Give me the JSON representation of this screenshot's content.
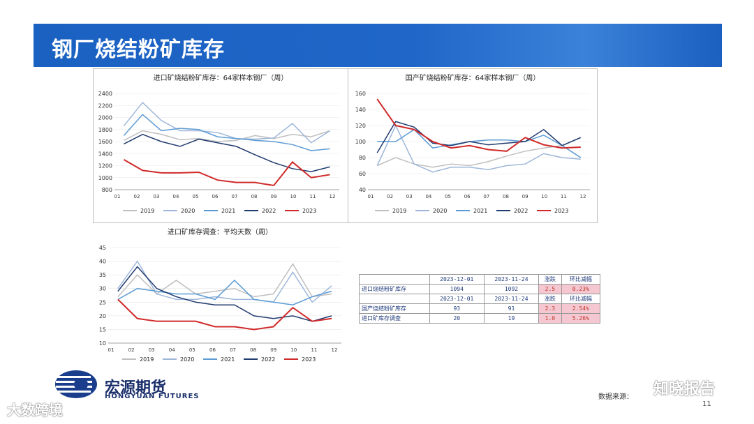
{
  "slide": {
    "title": "钢厂烧结粉矿库存",
    "page": "11"
  },
  "brand": {
    "name": "宏源期货",
    "name_en": "HONGYUAN FUTURES"
  },
  "source": "数据来源：",
  "watermark_left": "大数跨境",
  "watermark_right": "知晓报告",
  "legend_years": [
    "2019",
    "2020",
    "2021",
    "2022",
    "2023"
  ],
  "chart_data": [
    {
      "type": "line",
      "title": "进口矿烧结粉矿库存：64家样本钢厂（周）",
      "yticks": [
        "2400",
        "2200",
        "2000",
        "1800",
        "1600",
        "1400",
        "1200",
        "1000",
        "800"
      ],
      "ylim": [
        800,
        2400
      ],
      "xticks": [
        "01",
        "02",
        "03",
        "04",
        "05",
        "06",
        "07",
        "08",
        "09",
        "10",
        "11",
        "12"
      ],
      "series": [
        {
          "name": "2019",
          "color": "#bfbfbf",
          "values": [
            1620,
            1780,
            1720,
            1630,
            1650,
            1600,
            1620,
            1700,
            1650,
            1720,
            1680,
            1780
          ]
        },
        {
          "name": "2020",
          "color": "#9db6d9",
          "values": [
            1860,
            2250,
            1950,
            1780,
            1780,
            1750,
            1650,
            1640,
            1660,
            1900,
            1580,
            1780
          ]
        },
        {
          "name": "2021",
          "color": "#5b9bd5",
          "values": [
            1700,
            2050,
            1780,
            1820,
            1800,
            1680,
            1650,
            1620,
            1600,
            1550,
            1450,
            1480
          ]
        },
        {
          "name": "2022",
          "color": "#1f3a6e",
          "values": [
            1560,
            1720,
            1600,
            1520,
            1640,
            1580,
            1520,
            1380,
            1250,
            1150,
            1100,
            1180
          ]
        },
        {
          "name": "2023",
          "color": "#d02a2a",
          "values": [
            1300,
            1120,
            1080,
            1080,
            1090,
            960,
            920,
            920,
            870,
            1260,
            1000,
            1050
          ]
        }
      ]
    },
    {
      "type": "line",
      "title": "国产矿烧结粉矿库存：64家样本钢厂（周）",
      "yticks": [
        "160",
        "140",
        "120",
        "100",
        "80",
        "60",
        "40"
      ],
      "ylim": [
        40,
        160
      ],
      "xticks": [
        "01",
        "02",
        "03",
        "04",
        "05",
        "06",
        "07",
        "08",
        "09",
        "10",
        "11",
        "12"
      ],
      "series": [
        {
          "name": "2019",
          "color": "#bfbfbf",
          "values": [
            70,
            80,
            72,
            68,
            72,
            70,
            75,
            82,
            88,
            92,
            95,
            80
          ]
        },
        {
          "name": "2020",
          "color": "#9db6d9",
          "values": [
            70,
            120,
            72,
            62,
            68,
            68,
            65,
            70,
            72,
            85,
            80,
            78
          ]
        },
        {
          "name": "2021",
          "color": "#5b9bd5",
          "values": [
            100,
            100,
            115,
            92,
            96,
            100,
            102,
            102,
            100,
            108,
            95,
            80
          ]
        },
        {
          "name": "2022",
          "color": "#1f3a6e",
          "values": [
            86,
            125,
            118,
            98,
            95,
            100,
            96,
            98,
            100,
            115,
            95,
            105
          ]
        },
        {
          "name": "2023",
          "color": "#d02a2a",
          "values": [
            153,
            120,
            115,
            100,
            92,
            95,
            90,
            88,
            105,
            96,
            92,
            93
          ]
        }
      ]
    },
    {
      "type": "line",
      "title": "进口矿库存调查：平均天数（周）",
      "yticks": [
        "45",
        "40",
        "35",
        "30",
        "25",
        "20",
        "15",
        "10"
      ],
      "ylim": [
        10,
        45
      ],
      "xticks": [
        "01",
        "02",
        "03",
        "04",
        "05",
        "06",
        "07",
        "08",
        "09",
        "10",
        "11",
        "12"
      ],
      "series": [
        {
          "name": "2019",
          "color": "#bfbfbf",
          "values": [
            27,
            35,
            28,
            33,
            28,
            29,
            30,
            27,
            28,
            39,
            27,
            28
          ]
        },
        {
          "name": "2020",
          "color": "#9db6d9",
          "values": [
            30,
            40,
            28,
            26,
            26,
            27,
            26,
            26,
            25,
            36,
            25,
            31
          ]
        },
        {
          "name": "2021",
          "color": "#5b9bd5",
          "values": [
            26,
            30,
            29,
            28,
            28,
            26,
            33,
            26,
            25,
            24,
            27,
            29
          ]
        },
        {
          "name": "2022",
          "color": "#1f3a6e",
          "values": [
            29,
            38,
            30,
            27,
            25,
            24,
            24,
            20,
            19,
            20,
            18,
            20
          ]
        },
        {
          "name": "2023",
          "color": "#d02a2a",
          "values": [
            26,
            19,
            18,
            18,
            18,
            16,
            16,
            15,
            16,
            23,
            18,
            19
          ]
        }
      ]
    }
  ],
  "table": {
    "rows": [
      [
        "",
        "2023-12-01",
        "2023-11-24",
        "涨跌",
        "环比减幅"
      ],
      [
        "进口烧结粉矿库存",
        "1094",
        "1092",
        "2.5",
        "0.23%"
      ],
      [
        "",
        "2023-12-01",
        "2023-11-24",
        "涨跌",
        "环比减幅"
      ],
      [
        "国产烧结粉矿库存",
        "93",
        "91",
        "2.3",
        "2.54%"
      ],
      [
        "进口矿库存调查",
        "20",
        "19",
        "1.0",
        "5.26%"
      ]
    ]
  }
}
